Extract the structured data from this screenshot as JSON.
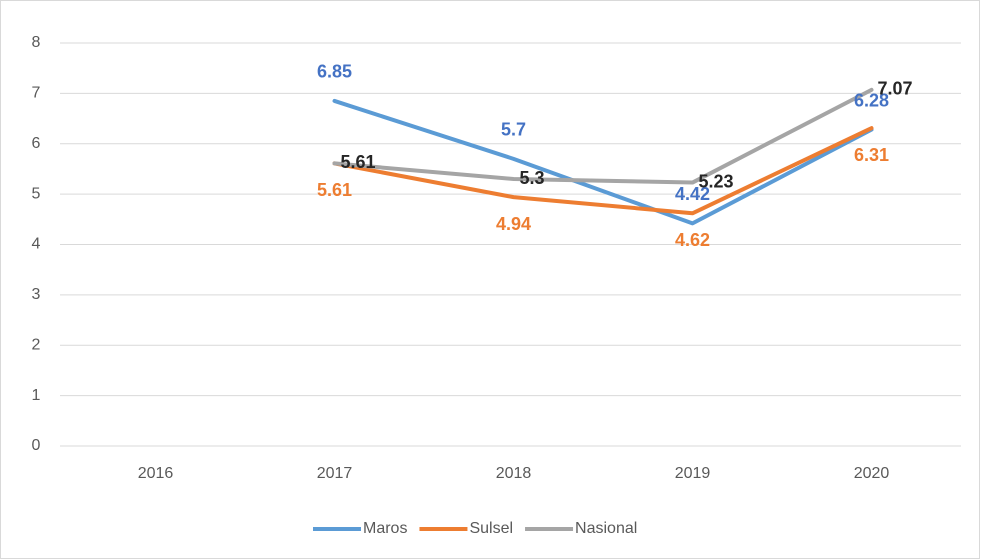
{
  "chart_data": {
    "type": "line",
    "categories": [
      "2016",
      "2017",
      "2018",
      "2019",
      "2020"
    ],
    "series": [
      {
        "name": "Maros",
        "color": "#5b9bd5",
        "values": [
          null,
          6.85,
          5.7,
          4.42,
          6.28
        ]
      },
      {
        "name": "Sulsel",
        "color": "#ed7d31",
        "values": [
          null,
          5.61,
          4.94,
          4.62,
          6.31
        ]
      },
      {
        "name": "Nasional",
        "color": "#a5a5a5",
        "values": [
          null,
          5.61,
          5.3,
          5.23,
          7.07
        ]
      }
    ],
    "ylim": [
      0,
      8
    ],
    "yticks": [
      0,
      1,
      2,
      3,
      4,
      5,
      6,
      7,
      8
    ],
    "grid": true,
    "legend": "bottom"
  }
}
